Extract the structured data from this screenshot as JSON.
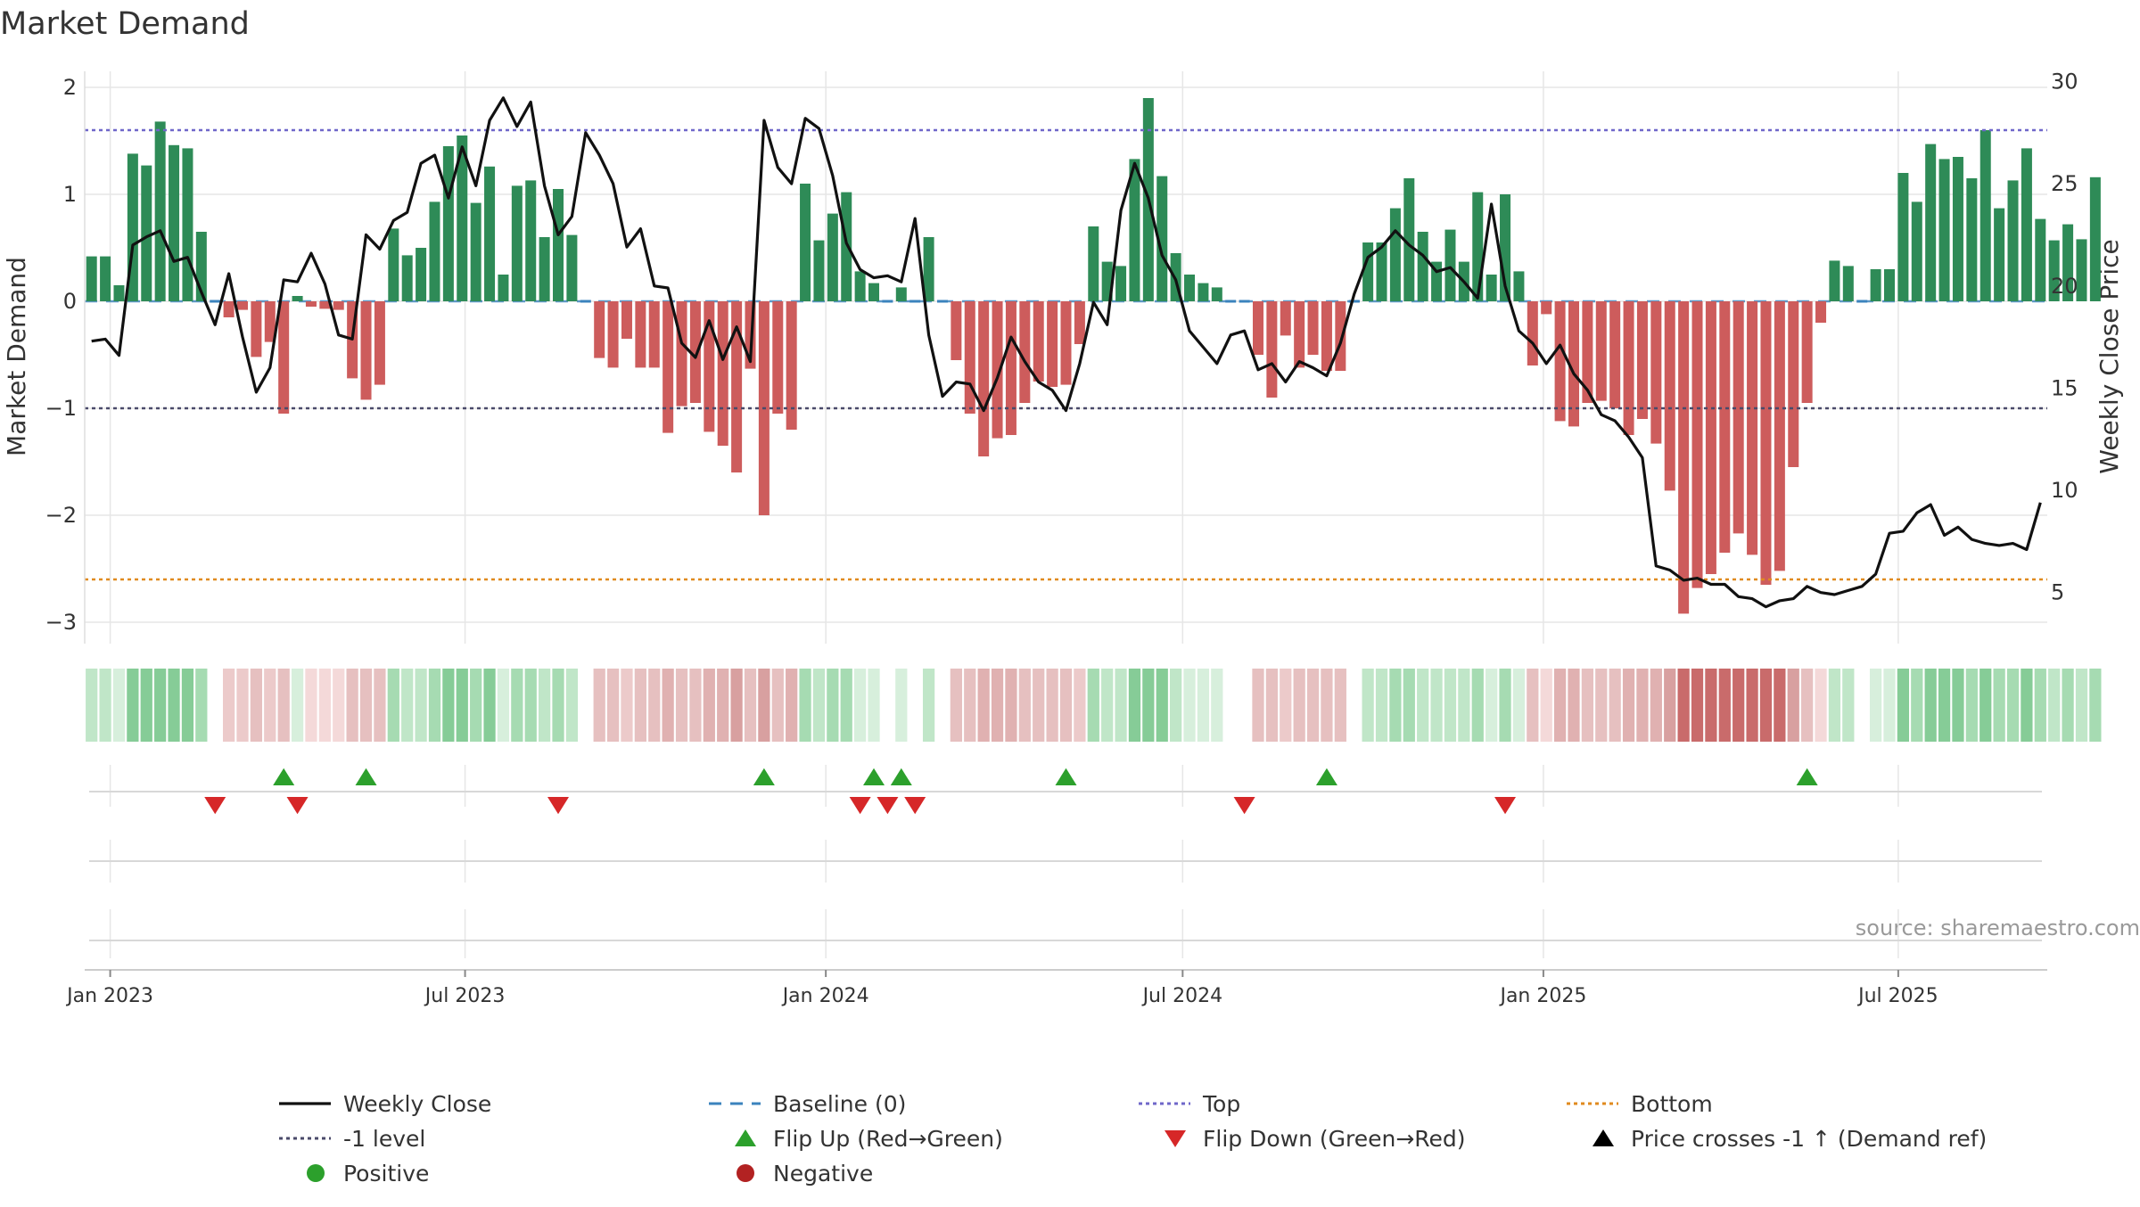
{
  "chart_data": {
    "type": "bar+line",
    "title": "Market Demand",
    "ylabel_left": "Market Demand",
    "ylabel_right": "Weekly Close Price",
    "source": "source: sharemaestro.com",
    "x_start": "2022-12-19",
    "x_end": "2025-09-15",
    "week_start": "2022-12-19",
    "ylim_left": [
      -3.2,
      2.15
    ],
    "ylim_right": [
      2.5,
      30.5
    ],
    "yticks_left": [
      {
        "v": 2,
        "label": "2"
      },
      {
        "v": 1,
        "label": "1"
      },
      {
        "v": 0,
        "label": "0"
      },
      {
        "v": -1,
        "label": "−1"
      },
      {
        "v": -2,
        "label": "−2"
      },
      {
        "v": -3,
        "label": "−3"
      }
    ],
    "yticks_right": [
      {
        "v": 30,
        "label": "30"
      },
      {
        "v": 25,
        "label": "25"
      },
      {
        "v": 20,
        "label": "20"
      },
      {
        "v": 15,
        "label": "15"
      },
      {
        "v": 10,
        "label": "10"
      },
      {
        "v": 5,
        "label": "5"
      }
    ],
    "xticks": [
      {
        "date": "2023-01-01",
        "label": "Jan 2023"
      },
      {
        "date": "2023-07-01",
        "label": "Jul 2023"
      },
      {
        "date": "2024-01-01",
        "label": "Jan 2024"
      },
      {
        "date": "2024-07-01",
        "label": "Jul 2024"
      },
      {
        "date": "2025-01-01",
        "label": "Jan 2025"
      },
      {
        "date": "2025-07-01",
        "label": "Jul 2025"
      }
    ],
    "levels": {
      "top": 1.6,
      "minus_one": -1.0,
      "bottom": -2.6,
      "baseline": 0
    },
    "demand": [
      0.42,
      0.42,
      0.15,
      1.38,
      1.27,
      1.68,
      1.46,
      1.43,
      0.65,
      0.0,
      -0.15,
      -0.08,
      -0.52,
      -0.38,
      -1.05,
      0.05,
      -0.05,
      -0.07,
      -0.08,
      -0.72,
      -0.92,
      -0.78,
      0.68,
      0.43,
      0.5,
      0.93,
      1.45,
      1.55,
      0.92,
      1.26,
      0.25,
      1.08,
      1.13,
      0.6,
      1.05,
      0.62,
      0.0,
      -0.53,
      -0.62,
      -0.35,
      -0.62,
      -0.62,
      -1.23,
      -0.98,
      -0.95,
      -1.22,
      -1.35,
      -1.6,
      -0.63,
      -2.0,
      -1.05,
      -1.2,
      1.1,
      0.57,
      0.82,
      1.02,
      0.28,
      0.17,
      0.0,
      0.13,
      0.0,
      0.6,
      0.0,
      -0.55,
      -1.05,
      -1.45,
      -1.28,
      -1.25,
      -0.95,
      -0.75,
      -0.8,
      -0.78,
      -0.4,
      0.7,
      0.37,
      0.33,
      1.33,
      1.9,
      1.17,
      0.45,
      0.25,
      0.17,
      0.13,
      0.0,
      0.0,
      -0.5,
      -0.9,
      -0.32,
      -0.62,
      -0.5,
      -0.65,
      -0.65,
      0.0,
      0.55,
      0.55,
      0.87,
      1.15,
      0.65,
      0.37,
      0.67,
      0.37,
      1.02,
      0.25,
      1.0,
      0.28,
      -0.6,
      -0.12,
      -1.12,
      -1.17,
      -0.95,
      -0.93,
      -1.0,
      -1.25,
      -1.1,
      -1.33,
      -1.77,
      -2.92,
      -2.68,
      -2.55,
      -2.35,
      -2.17,
      -2.37,
      -2.65,
      -2.52,
      -1.55,
      -0.95,
      -0.2,
      0.38,
      0.33,
      0.0,
      0.3,
      0.3,
      1.2,
      0.93,
      1.47,
      1.33,
      1.35,
      1.15,
      1.6,
      0.87,
      1.13,
      1.43,
      0.77,
      0.57,
      0.72,
      0.58,
      1.16
    ],
    "close": [
      17.3,
      17.4,
      16.6,
      22.0,
      22.4,
      22.7,
      21.2,
      21.4,
      19.7,
      18.1,
      20.6,
      17.5,
      14.8,
      16.0,
      20.3,
      20.2,
      21.6,
      20.1,
      17.6,
      17.4,
      22.5,
      21.8,
      23.2,
      23.6,
      26.0,
      26.4,
      24.3,
      26.8,
      24.9,
      28.1,
      29.2,
      27.8,
      29.0,
      24.9,
      22.5,
      23.4,
      27.5,
      26.4,
      25.0,
      21.9,
      22.8,
      20.0,
      19.9,
      17.2,
      16.5,
      18.3,
      16.4,
      18.0,
      16.3,
      28.1,
      25.8,
      25.0,
      28.2,
      27.7,
      25.4,
      22.1,
      20.8,
      20.4,
      20.5,
      20.2,
      23.3,
      17.6,
      14.6,
      15.3,
      15.2,
      13.9,
      15.5,
      17.5,
      16.3,
      15.3,
      14.9,
      13.9,
      16.2,
      19.2,
      18.1,
      23.7,
      26.0,
      24.3,
      21.5,
      20.3,
      17.8,
      17.0,
      16.2,
      17.6,
      17.8,
      15.9,
      16.2,
      15.3,
      16.3,
      16.0,
      15.6,
      17.2,
      19.6,
      21.4,
      21.9,
      22.7,
      22.0,
      21.5,
      20.7,
      20.9,
      20.2,
      19.4,
      24.0,
      20.0,
      17.8,
      17.2,
      16.2,
      17.1,
      15.7,
      14.9,
      13.7,
      13.4,
      12.6,
      11.6,
      6.3,
      6.1,
      5.6,
      5.7,
      5.4,
      5.4,
      4.8,
      4.7,
      4.3,
      4.6,
      4.7,
      5.3,
      5.0,
      4.9,
      5.1,
      5.3,
      5.9,
      7.9,
      8.0,
      8.9,
      9.3,
      7.8,
      8.2,
      7.6,
      7.4,
      7.3,
      7.4,
      7.1,
      9.4
    ],
    "heat_shade": [
      2,
      2,
      1,
      4,
      4,
      4,
      4,
      4,
      3,
      0,
      -2,
      -2,
      -3,
      -2,
      -3,
      1,
      -1,
      -1,
      -1,
      -3,
      -3,
      -3,
      3,
      2,
      2,
      3,
      4,
      4,
      3,
      4,
      1,
      3,
      3,
      2,
      3,
      2,
      0,
      -3,
      -3,
      -2,
      -3,
      -3,
      -4,
      -3,
      -3,
      -4,
      -4,
      -5,
      -3,
      -5,
      -3,
      -4,
      3,
      2,
      3,
      3,
      1,
      1,
      0,
      1,
      0,
      2,
      0,
      -3,
      -3,
      -4,
      -4,
      -4,
      -3,
      -3,
      -3,
      -3,
      -2,
      3,
      2,
      2,
      4,
      4,
      4,
      2,
      1,
      1,
      1,
      0,
      0,
      -3,
      -3,
      -2,
      -3,
      -3,
      -3,
      -3,
      0,
      2,
      2,
      3,
      3,
      2,
      2,
      2,
      2,
      3,
      1,
      3,
      1,
      -3,
      -1,
      -4,
      -4,
      -3,
      -3,
      -3,
      -4,
      -4,
      -4,
      -5,
      -6,
      -6,
      -6,
      -6,
      -6,
      -6,
      -6,
      -6,
      -5,
      -3,
      -1,
      2,
      2,
      0,
      1,
      1,
      4,
      3,
      4,
      4,
      4,
      3,
      4,
      3,
      3,
      4,
      3,
      2,
      3,
      2,
      3
    ],
    "flip_up": [
      14,
      20,
      49,
      57,
      59,
      71,
      90,
      125
    ],
    "flip_down": [
      9,
      15,
      34,
      56,
      58,
      60,
      84,
      103
    ],
    "legend": [
      {
        "label": "Weekly Close",
        "symbol": "line-solid",
        "color": "#111111"
      },
      {
        "label": "Baseline (0)",
        "symbol": "line-dash",
        "color": "#3b83bd"
      },
      {
        "label": "Top",
        "symbol": "line-dot",
        "color": "#6f67c9"
      },
      {
        "label": "Bottom",
        "symbol": "line-dot",
        "color": "#e08a1e"
      },
      {
        "label": "-1 level",
        "symbol": "line-dot",
        "color": "#4a4a6a"
      },
      {
        "label": "Flip Up (Red→Green)",
        "symbol": "tri-up",
        "color": "#2ca02c"
      },
      {
        "label": "Flip Down (Green→Red)",
        "symbol": "tri-down",
        "color": "#d62728"
      },
      {
        "label": "Price crosses -1 ↑ (Demand ref)",
        "symbol": "tri-up",
        "color": "#000000"
      },
      {
        "label": "Positive",
        "symbol": "dot",
        "color": "#2ca02c"
      },
      {
        "label": "Negative",
        "symbol": "dot",
        "color": "#b22222"
      }
    ],
    "colors": {
      "positive_bar": "#2e8b57",
      "negative_bar": "#cd5c5c",
      "price_line": "#111111",
      "baseline": "#3b83bd",
      "top": "#6f67c9",
      "minus_one": "#4a4a6a",
      "bottom": "#e08a1e",
      "flip_up": "#2ca02c",
      "flip_down": "#d62728",
      "grid": "#e6e6e6",
      "text": "#333333"
    }
  }
}
